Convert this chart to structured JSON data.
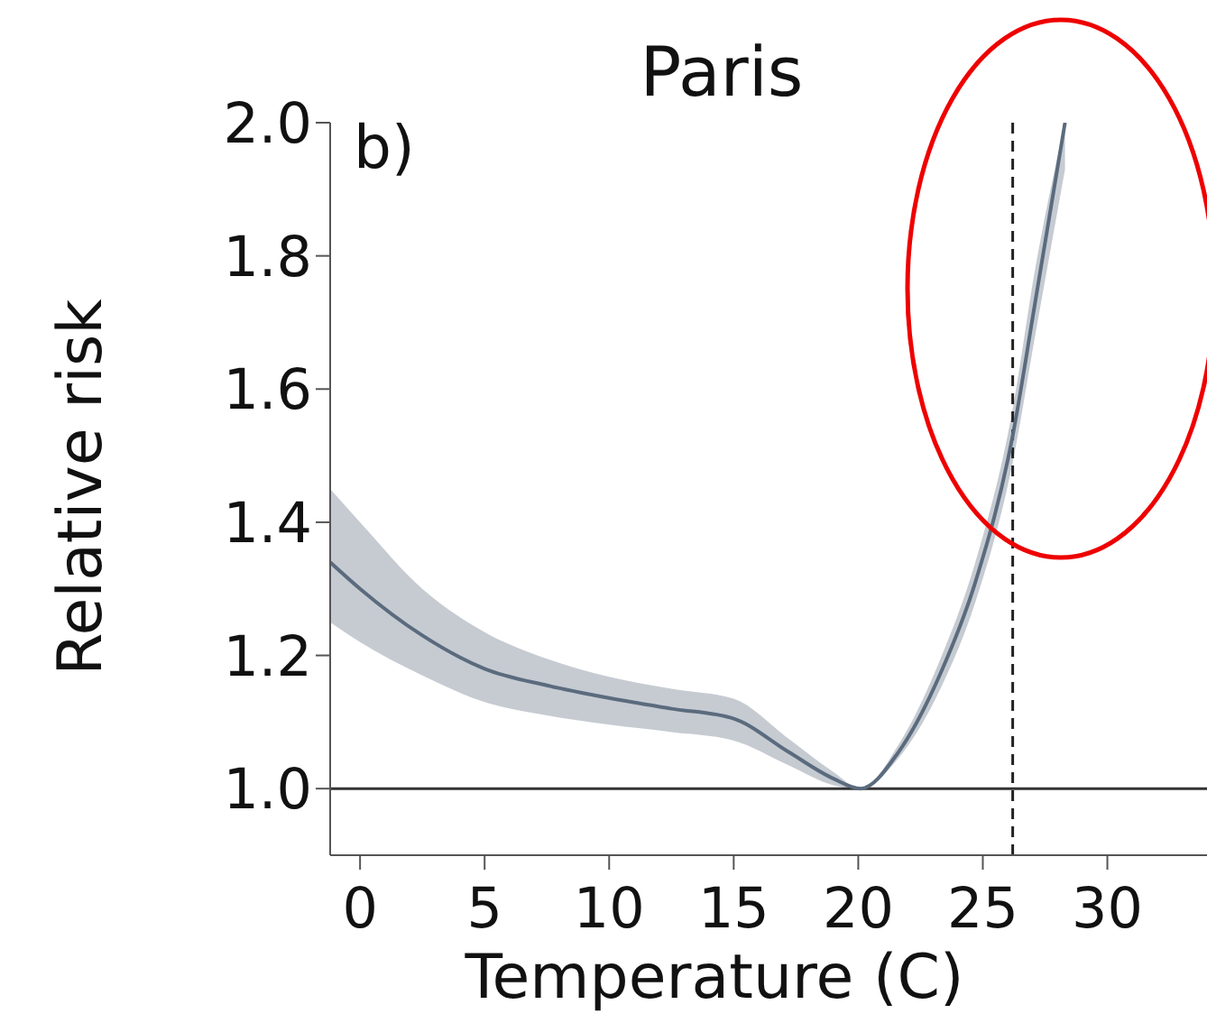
{
  "chart_data": {
    "type": "line",
    "title": "Paris",
    "xlabel": "Temperature (C)",
    "ylabel": "Relative risk",
    "annotations": [
      "b)"
    ],
    "x": [
      -1.2,
      0,
      2.5,
      5,
      7.5,
      10,
      12.5,
      15,
      17.2,
      19,
      20.1,
      21.6,
      23.3,
      24.7,
      26.2,
      27.1,
      28.3
    ],
    "series": [
      {
        "color": "#5b6b7e",
        "values": [
          1.34,
          1.3,
          1.23,
          1.18,
          1.155,
          1.136,
          1.12,
          1.105,
          1.055,
          1.015,
          1.0,
          1.054,
          1.173,
          1.31,
          1.53,
          1.73,
          2.0
        ],
        "lower": [
          1.25,
          1.22,
          1.17,
          1.13,
          1.11,
          1.096,
          1.085,
          1.072,
          1.035,
          1.005,
          1.0,
          1.045,
          1.15,
          1.28,
          1.49,
          1.68,
          1.93
        ],
        "upper": [
          1.45,
          1.4,
          1.3,
          1.235,
          1.195,
          1.168,
          1.15,
          1.135,
          1.075,
          1.025,
          1.0,
          1.065,
          1.195,
          1.34,
          1.57,
          1.78,
          2.0
        ]
      }
    ],
    "xlim": [
      -1.2,
      34
    ],
    "xticks": [
      0,
      5,
      10,
      15,
      20,
      25,
      30
    ],
    "ylim": [
      0.9,
      2.0
    ],
    "yticks": [
      {
        "value": 1,
        "label": "1.0"
      },
      1.2,
      1.4,
      1.6,
      1.8,
      {
        "value": 2,
        "label": "2.0"
      }
    ],
    "ref_lines": [
      {
        "axis": "y",
        "value": 1.0,
        "color": "#333333",
        "line_style": "solid"
      },
      {
        "axis": "x",
        "value": 26.2,
        "color": "#222222",
        "line_style": "dashed"
      }
    ],
    "grid": false,
    "legend": false,
    "marker": "none",
    "line_style": "solid"
  }
}
